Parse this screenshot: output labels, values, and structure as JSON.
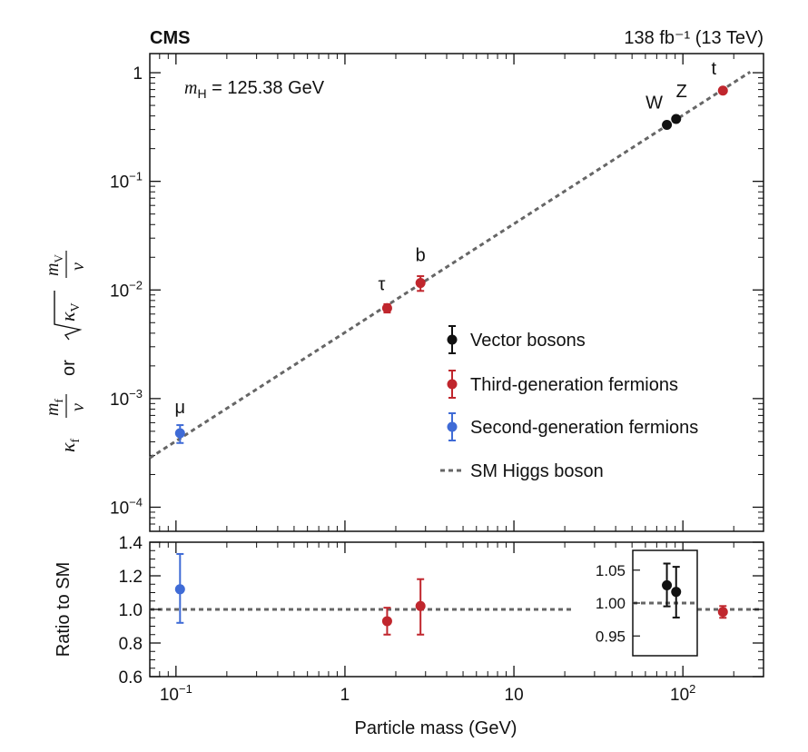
{
  "chart_data": [
    {
      "panel": "main",
      "type": "scatter",
      "experiment": "CMS",
      "luminosity_label": "138 fb⁻¹ (13 TeV)",
      "annotation": {
        "symbol": "m",
        "subscript": "H",
        "text": " = 125.38 GeV"
      },
      "ylabel": {
        "kappa": "κ",
        "f": "f",
        "m": "m",
        "v": "v",
        "or": "or",
        "V": "V"
      },
      "xscale": "log",
      "yscale": "log",
      "xlim": [
        0.07,
        300
      ],
      "ylim": [
        6e-05,
        1.5
      ],
      "yticks": [
        {
          "value": 0.0001,
          "mantissa": "10",
          "exponent": "−4"
        },
        {
          "value": 0.001,
          "mantissa": "10",
          "exponent": "−3"
        },
        {
          "value": 0.01,
          "mantissa": "10",
          "exponent": "−2"
        },
        {
          "value": 0.1,
          "mantissa": "10",
          "exponent": "−1"
        },
        {
          "value": 1,
          "mantissa": "1",
          "exponent": ""
        }
      ],
      "series": [
        {
          "name": "Vector bosons",
          "color": "#111111",
          "points": [
            {
              "label": "W",
              "x": 80.4,
              "y": 0.331,
              "yerr_low": 0.005,
              "yerr_high": 0.005
            },
            {
              "label": "Z",
              "x": 91.2,
              "y": 0.375,
              "yerr_low": 0.006,
              "yerr_high": 0.006
            }
          ]
        },
        {
          "name": "Third-generation fermions",
          "color": "#c0262d",
          "points": [
            {
              "label": "τ",
              "x": 1.777,
              "y": 0.0068,
              "yerr_low": 0.0006,
              "yerr_high": 0.0006
            },
            {
              "label": "b",
              "x": 2.8,
              "y": 0.0116,
              "yerr_low": 0.0018,
              "yerr_high": 0.0018
            },
            {
              "label": "t",
              "x": 172.5,
              "y": 0.684,
              "yerr_low": 0.015,
              "yerr_high": 0.015
            }
          ]
        },
        {
          "name": "Second-generation fermions",
          "color": "#3f6bd6",
          "points": [
            {
              "label": "μ",
              "x": 0.1057,
              "y": 0.00048,
              "yerr_low": 9e-05,
              "yerr_high": 9e-05
            }
          ]
        }
      ],
      "reference_line": {
        "name": "SM Higgs boson",
        "style": "dashed",
        "color": "#666666"
      },
      "legend_position": "lower-right"
    },
    {
      "panel": "ratio",
      "type": "scatter",
      "xlabel": "Particle mass (GeV)",
      "ylabel": "Ratio to SM",
      "xscale": "log",
      "xlim": [
        0.07,
        300
      ],
      "ylim": [
        0.6,
        1.4
      ],
      "yticks": [
        "0.6",
        "0.8",
        "1.0",
        "1.2",
        "1.4"
      ],
      "xticks": [
        {
          "value": 0.1,
          "mantissa": "10",
          "exponent": "−1"
        },
        {
          "value": 1,
          "mantissa": "1",
          "exponent": ""
        },
        {
          "value": 10,
          "mantissa": "10",
          "exponent": ""
        },
        {
          "value": 100,
          "mantissa": "10",
          "exponent": "2"
        }
      ],
      "reference_value": 1.0,
      "points": [
        {
          "label": "μ",
          "x": 0.1057,
          "y": 1.12,
          "low": 0.92,
          "high": 1.33,
          "color": "#3f6bd6"
        },
        {
          "label": "τ",
          "x": 1.777,
          "y": 0.93,
          "low": 0.85,
          "high": 1.01,
          "color": "#c0262d"
        },
        {
          "label": "b",
          "x": 2.8,
          "y": 1.02,
          "low": 0.85,
          "high": 1.18,
          "color": "#c0262d"
        },
        {
          "label": "t",
          "x": 172.5,
          "y": 0.985,
          "low": 0.95,
          "high": 1.02,
          "color": "#c0262d"
        }
      ],
      "inset": {
        "ylim": [
          0.92,
          1.08
        ],
        "yticks": [
          "0.95",
          "1.00",
          "1.05"
        ],
        "points": [
          {
            "label": "W",
            "x": 80.4,
            "y": 1.027,
            "low": 0.995,
            "high": 1.06,
            "color": "#111111"
          },
          {
            "label": "Z",
            "x": 91.2,
            "y": 1.017,
            "low": 0.978,
            "high": 1.055,
            "color": "#111111"
          }
        ]
      }
    }
  ]
}
